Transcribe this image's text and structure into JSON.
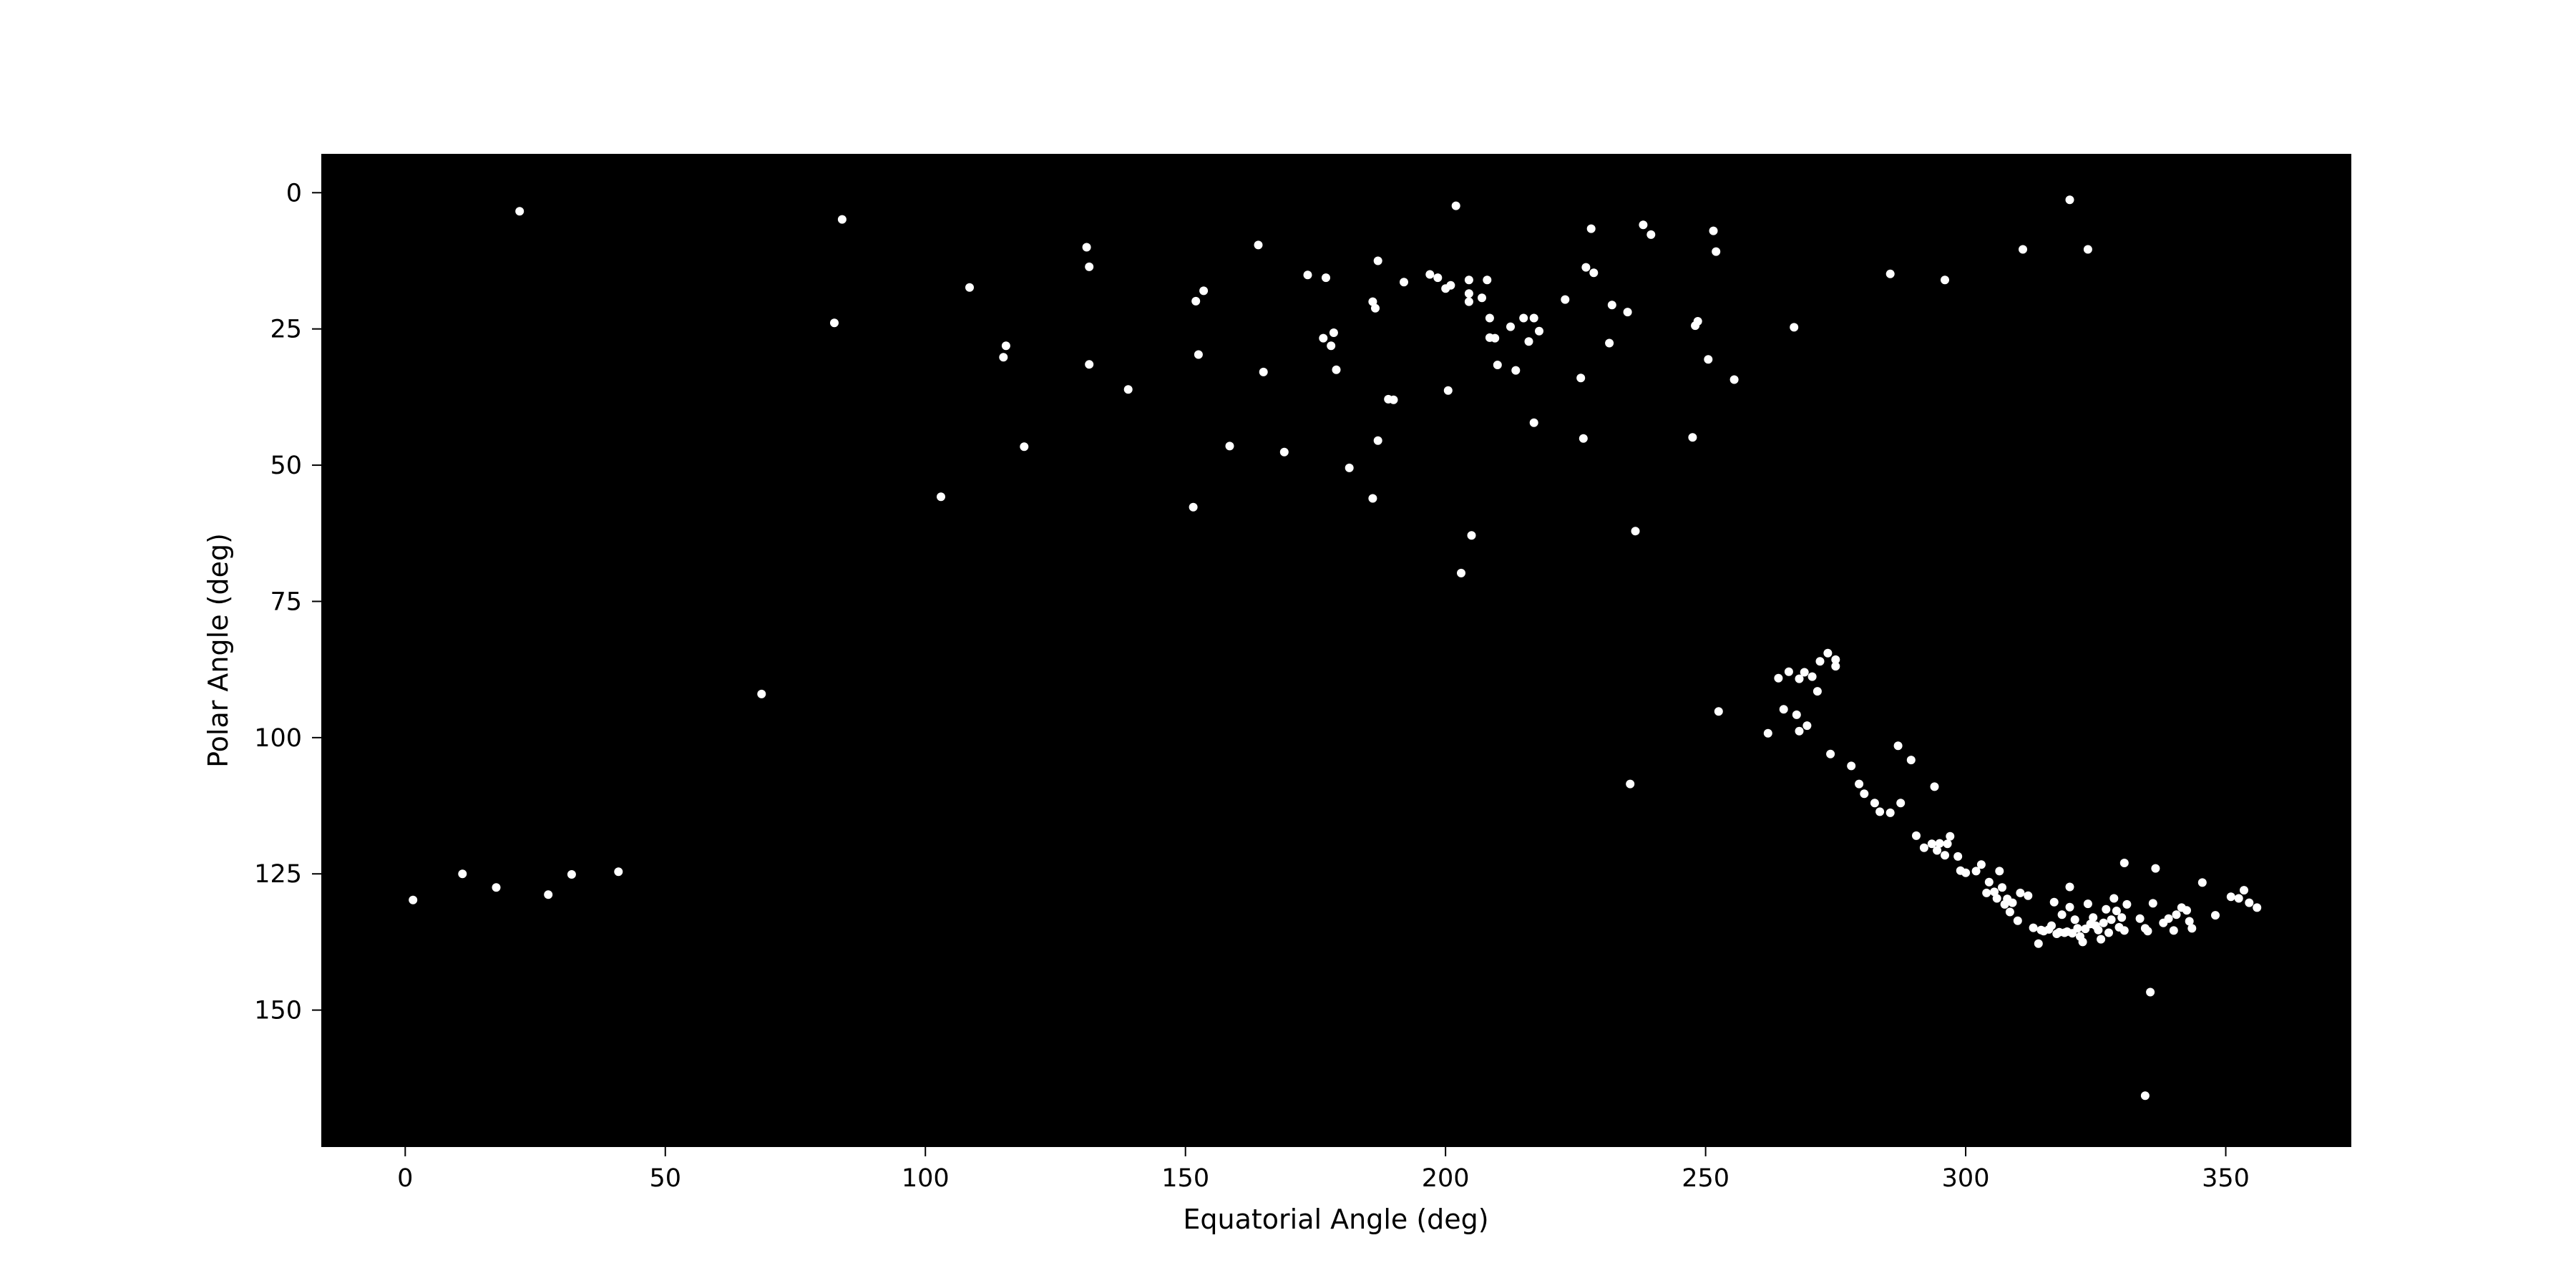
{
  "chart_data": {
    "type": "scatter",
    "xlabel": "Equatorial Angle (deg)",
    "ylabel": "Polar Angle (deg)",
    "xlim": [
      -16,
      374
    ],
    "ylim": [
      175,
      -7
    ],
    "y_inverted": true,
    "grid": false,
    "legend": "none",
    "x_ticks": [
      0,
      50,
      100,
      150,
      200,
      250,
      300,
      350
    ],
    "y_ticks": [
      0,
      25,
      50,
      75,
      100,
      125,
      150
    ],
    "colors": {
      "plot_background": "#000000",
      "marker": "#ffffff",
      "page_background": "#ffffff",
      "text": "#000000"
    },
    "points": [
      [
        1.5,
        129.8
      ],
      [
        11,
        125
      ],
      [
        17.5,
        127.5
      ],
      [
        27.5,
        128.8
      ],
      [
        32,
        125.1
      ],
      [
        41,
        124.6
      ],
      [
        22,
        3.4
      ],
      [
        68.5,
        92
      ],
      [
        82.5,
        23.9
      ],
      [
        84,
        4.9
      ],
      [
        103,
        55.8
      ],
      [
        108.5,
        17.4
      ],
      [
        115,
        30.2
      ],
      [
        115.5,
        28.1
      ],
      [
        119,
        46.6
      ],
      [
        131,
        10
      ],
      [
        131.5,
        13.6
      ],
      [
        131.5,
        31.5
      ],
      [
        139,
        36.1
      ],
      [
        151.5,
        57.7
      ],
      [
        152,
        19.9
      ],
      [
        152.5,
        29.7
      ],
      [
        153.5,
        18
      ],
      [
        164,
        9.6
      ],
      [
        165,
        32.9
      ],
      [
        169,
        47.6
      ],
      [
        158.5,
        46.5
      ],
      [
        173.5,
        15.1
      ],
      [
        177,
        15.6
      ],
      [
        176.5,
        26.7
      ],
      [
        178,
        28.1
      ],
      [
        178.5,
        25.7
      ],
      [
        179,
        32.5
      ],
      [
        181.5,
        50.5
      ],
      [
        186,
        56.1
      ],
      [
        186,
        20
      ],
      [
        186.5,
        21.2
      ],
      [
        187,
        12.5
      ],
      [
        187,
        45.5
      ],
      [
        189,
        37.9
      ],
      [
        190,
        38
      ],
      [
        192,
        16.4
      ],
      [
        197,
        15
      ],
      [
        198.5,
        15.6
      ],
      [
        200,
        17.6
      ],
      [
        200.5,
        36.3
      ],
      [
        201,
        17
      ],
      [
        202,
        2.4
      ],
      [
        203,
        69.8
      ],
      [
        204.5,
        16
      ],
      [
        204.5,
        18.5
      ],
      [
        204.5,
        20
      ],
      [
        205,
        62.9
      ],
      [
        207,
        19.3
      ],
      [
        208,
        16
      ],
      [
        208.5,
        23
      ],
      [
        208.5,
        26.6
      ],
      [
        209.5,
        26.7
      ],
      [
        210,
        31.6
      ],
      [
        212.5,
        24.6
      ],
      [
        213.5,
        32.6
      ],
      [
        215,
        23
      ],
      [
        216,
        27.3
      ],
      [
        217,
        23
      ],
      [
        217,
        42.2
      ],
      [
        218,
        25.4
      ],
      [
        223,
        19.6
      ],
      [
        226,
        34
      ],
      [
        226.5,
        45.1
      ],
      [
        227,
        13.7
      ],
      [
        228,
        6.6
      ],
      [
        228.5,
        14.7
      ],
      [
        231.5,
        27.6
      ],
      [
        232,
        20.6
      ],
      [
        235,
        21.9
      ],
      [
        235.5,
        108.5
      ],
      [
        236.5,
        62.1
      ],
      [
        238,
        5.9
      ],
      [
        239.5,
        7.7
      ],
      [
        247.5,
        44.9
      ],
      [
        248,
        24.4
      ],
      [
        248.5,
        23.6
      ],
      [
        250.5,
        30.6
      ],
      [
        251.5,
        7
      ],
      [
        252,
        10.8
      ],
      [
        252.5,
        95.2
      ],
      [
        255.5,
        34.3
      ],
      [
        267,
        24.7
      ],
      [
        285.5,
        14.9
      ],
      [
        296,
        16
      ],
      [
        311,
        10.4
      ],
      [
        320,
        1.3
      ],
      [
        323.5,
        10.4
      ],
      [
        262,
        99.2
      ],
      [
        264,
        89.1
      ],
      [
        265,
        94.8
      ],
      [
        266,
        87.9
      ],
      [
        267.5,
        95.8
      ],
      [
        268,
        98.8
      ],
      [
        268,
        89.2
      ],
      [
        269,
        88
      ],
      [
        269.5,
        97.8
      ],
      [
        270.5,
        88.8
      ],
      [
        271.5,
        91.5
      ],
      [
        272,
        86
      ],
      [
        273.5,
        84.5
      ],
      [
        274,
        103
      ],
      [
        275,
        85.7
      ],
      [
        275,
        86.9
      ],
      [
        278,
        105.2
      ],
      [
        279.5,
        108.5
      ],
      [
        280.5,
        110.3
      ],
      [
        282.5,
        112
      ],
      [
        283.5,
        113.6
      ],
      [
        285.5,
        113.8
      ],
      [
        287,
        101.5
      ],
      [
        287.5,
        112
      ],
      [
        289.5,
        104.1
      ],
      [
        290.5,
        118
      ],
      [
        292,
        120.2
      ],
      [
        293.5,
        119.5
      ],
      [
        294,
        109
      ],
      [
        294.5,
        120.7
      ],
      [
        295,
        119.4
      ],
      [
        296,
        121.6
      ],
      [
        296.5,
        119.5
      ],
      [
        297,
        118.1
      ],
      [
        298.5,
        121.8
      ],
      [
        299,
        124.4
      ],
      [
        300,
        124.8
      ],
      [
        302,
        124.5
      ],
      [
        303,
        123.3
      ],
      [
        304,
        128.5
      ],
      [
        304.5,
        126.5
      ],
      [
        305.5,
        128.3
      ],
      [
        306,
        129.5
      ],
      [
        306.5,
        124.5
      ],
      [
        307,
        127.5
      ],
      [
        307.5,
        130.6
      ],
      [
        308,
        129.6
      ],
      [
        308.5,
        132
      ],
      [
        309,
        130.3
      ],
      [
        310,
        133.6
      ],
      [
        310.5,
        128.5
      ],
      [
        312,
        129
      ],
      [
        313,
        134.9
      ],
      [
        314,
        137.8
      ],
      [
        314.5,
        135.3
      ],
      [
        315,
        135.5
      ],
      [
        316,
        135.2
      ],
      [
        316.5,
        134.5
      ],
      [
        317,
        130.2
      ],
      [
        317.5,
        136
      ],
      [
        318,
        135.7
      ],
      [
        318.5,
        132.5
      ],
      [
        319,
        135.8
      ],
      [
        319.5,
        135.6
      ],
      [
        320,
        127.4
      ],
      [
        320,
        131.1
      ],
      [
        320.5,
        135.9
      ],
      [
        321,
        133.4
      ],
      [
        321.5,
        135
      ],
      [
        322,
        136.5
      ],
      [
        322.5,
        137.5
      ],
      [
        323,
        135.1
      ],
      [
        323.5,
        130.5
      ],
      [
        324,
        134.2
      ],
      [
        324.5,
        133
      ],
      [
        325,
        134.5
      ],
      [
        325.5,
        135.3
      ],
      [
        326,
        137
      ],
      [
        326.5,
        134
      ],
      [
        327,
        131.5
      ],
      [
        327.5,
        135.8
      ],
      [
        328,
        133.4
      ],
      [
        328.5,
        129.5
      ],
      [
        329,
        131.8
      ],
      [
        329.5,
        134.8
      ],
      [
        330,
        133
      ],
      [
        330.5,
        123
      ],
      [
        330.5,
        135.4
      ],
      [
        331,
        130.6
      ],
      [
        333.5,
        133.2
      ],
      [
        334.5,
        135
      ],
      [
        335,
        135.5
      ],
      [
        335.5,
        146.7
      ],
      [
        336,
        130.4
      ],
      [
        336.5,
        124
      ],
      [
        338,
        134
      ],
      [
        339,
        133.2
      ],
      [
        340,
        135.4
      ],
      [
        340.5,
        132.5
      ],
      [
        341.5,
        131.2
      ],
      [
        342.5,
        131.7
      ],
      [
        343,
        133.7
      ],
      [
        343.5,
        135
      ],
      [
        345.5,
        126.6
      ],
      [
        348,
        132.6
      ],
      [
        351,
        129.2
      ],
      [
        352.5,
        129.5
      ],
      [
        353.5,
        128
      ],
      [
        354.5,
        130.3
      ],
      [
        356,
        131.2
      ],
      [
        334.5,
        165.7
      ]
    ]
  }
}
